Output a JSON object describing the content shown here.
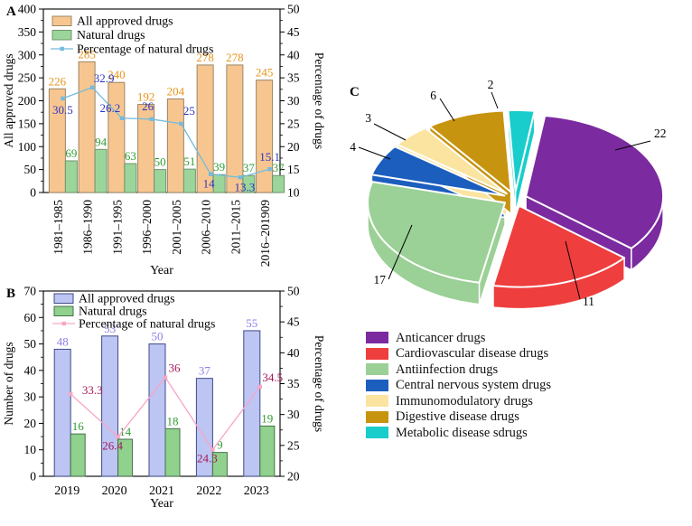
{
  "figure": {
    "background": "#ffffff"
  },
  "chart_data": [
    {
      "id": "A",
      "panel_letter": "A",
      "type": "bar+line",
      "categories": [
        "1981–1985",
        "1986–1990",
        "1991–1995",
        "1996–2000",
        "2001–2005",
        "2006–2010",
        "2011–2015",
        "2016–201909"
      ],
      "series": [
        {
          "name": "All approved drugs",
          "type": "bar",
          "axis": "left",
          "values": [
            226,
            285,
            240,
            192,
            204,
            278,
            278,
            245
          ],
          "color": "#F7C690",
          "edge": "#9B8566",
          "value_color": "#E8941A"
        },
        {
          "name": "Natural drugs",
          "type": "bar",
          "axis": "left",
          "values": [
            69,
            94,
            63,
            50,
            51,
            39,
            37,
            37
          ],
          "color": "#9CD59A",
          "edge": "#70946E",
          "value_color": "#2F9D32"
        },
        {
          "name": "Percentage of natural drugs",
          "type": "line",
          "axis": "right",
          "values": [
            30.5,
            32.9,
            26.2,
            26,
            25,
            14,
            13.3,
            15.1
          ],
          "color": "#74BBDC",
          "value_color": "#2B35C0"
        }
      ],
      "xlabel": "Year",
      "ylabel": "All approved drugs",
      "y2label": "Percentage of drugs",
      "ylim": [
        0,
        400
      ],
      "yticks": [
        0,
        50,
        100,
        150,
        200,
        250,
        300,
        350,
        400
      ],
      "y2lim": [
        10,
        50
      ],
      "y2ticks": [
        10,
        15,
        20,
        25,
        30,
        35,
        40,
        45,
        50
      ],
      "legend_position": "upper-left",
      "grid": false
    },
    {
      "id": "B",
      "panel_letter": "B",
      "type": "bar+line",
      "categories": [
        "2019",
        "2020",
        "2021",
        "2022",
        "2023"
      ],
      "series": [
        {
          "name": "All approved drugs",
          "type": "bar",
          "axis": "left",
          "values": [
            48,
            53,
            50,
            37,
            55
          ],
          "color": "#BDC5F2",
          "edge": "#3D4C8C",
          "value_color": "#8E7FE6"
        },
        {
          "name": "Natural drugs",
          "type": "bar",
          "axis": "left",
          "values": [
            16,
            14,
            18,
            9,
            19
          ],
          "color": "#8FD18D",
          "edge": "#46704C",
          "value_color": "#2F9D32"
        },
        {
          "name": "Percentage of natural drugs",
          "type": "line",
          "axis": "right",
          "values": [
            33.3,
            26.4,
            36,
            24.3,
            34.5
          ],
          "color": "#F8A6C6",
          "value_color": "#A5185C"
        }
      ],
      "xlabel": "Year",
      "ylabel": "Number of drugs",
      "y2label": "Percentage of drugs",
      "ylim": [
        0,
        70
      ],
      "yticks": [
        0,
        10,
        20,
        30,
        40,
        50,
        60,
        70
      ],
      "y2lim": [
        20,
        50
      ],
      "y2ticks": [
        20,
        25,
        30,
        35,
        40,
        45,
        50
      ],
      "legend_position": "upper-left",
      "grid": false
    },
    {
      "id": "C",
      "panel_letter": "C",
      "type": "pie",
      "slices": [
        {
          "label": "Anticancer drugs",
          "value": 22,
          "color": "#7B2AA0"
        },
        {
          "label": "Cardiovascular disease drugs",
          "value": 11,
          "color": "#EE3E3E"
        },
        {
          "label": "Antiinfection drugs",
          "value": 17,
          "color": "#9BD096"
        },
        {
          "label": "Central nervous system drugs",
          "value": 4,
          "color": "#1C5EBD"
        },
        {
          "label": "Immunomodulatory drugs",
          "value": 3,
          "color": "#FAE4A0"
        },
        {
          "label": "Digestive disease drugs",
          "value": 6,
          "color": "#C79410"
        },
        {
          "label": "Metabolic disease sdrugs",
          "value": 2,
          "color": "#18CDCB"
        }
      ],
      "legend_position": "bottom-left"
    }
  ]
}
